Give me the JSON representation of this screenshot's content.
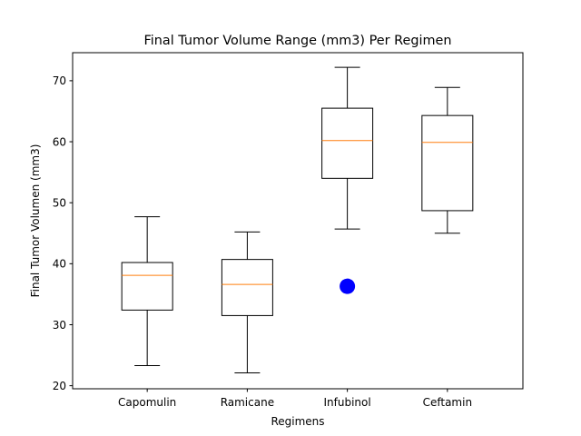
{
  "chart_data": {
    "type": "box",
    "title": "Final Tumor Volume Range (mm3) Per Regimen",
    "xlabel": "Regimens",
    "ylabel": "Final Tumor Volumen (mm3)",
    "ylim": [
      19.5,
      74.6
    ],
    "yticks": [
      20,
      30,
      40,
      50,
      60,
      70
    ],
    "grid": false,
    "categories": [
      "Capomulin",
      "Ramicane",
      "Infubinol",
      "Ceftamin"
    ],
    "boxes": [
      {
        "category": "Capomulin",
        "whisker_low": 23.3,
        "q1": 32.4,
        "median": 38.1,
        "q3": 40.2,
        "whisker_high": 47.7,
        "outliers": []
      },
      {
        "category": "Ramicane",
        "whisker_low": 22.1,
        "q1": 31.5,
        "median": 36.6,
        "q3": 40.7,
        "whisker_high": 45.2,
        "outliers": []
      },
      {
        "category": "Infubinol",
        "whisker_low": 45.7,
        "q1": 54.0,
        "median": 60.2,
        "q3": 65.5,
        "whisker_high": 72.2,
        "outliers": [
          36.3
        ]
      },
      {
        "category": "Ceftamin",
        "whisker_low": 45.0,
        "q1": 48.7,
        "median": 59.9,
        "q3": 64.3,
        "whisker_high": 68.9,
        "outliers": []
      }
    ],
    "colors": {
      "box": "#000000",
      "median": "#ff7f0e",
      "outlier": "#0000ff",
      "axes": "#000000"
    }
  }
}
